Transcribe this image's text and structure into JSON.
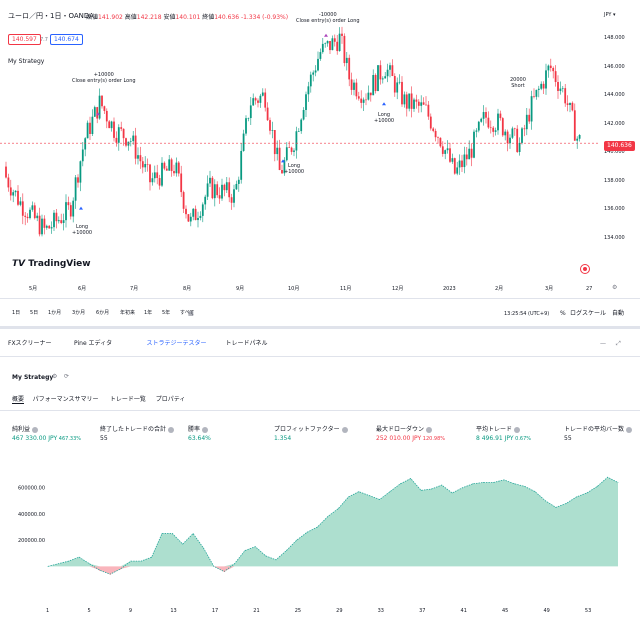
{
  "chart": {
    "symbol": "ユーロ／円・1日・OANDA",
    "ohlc": [
      {
        "label": "始値",
        "value": "141.902"
      },
      {
        "label": "高値",
        "value": "142.218"
      },
      {
        "label": "安値",
        "value": "140.101"
      },
      {
        "label": "終値",
        "value": "140.636",
        "change": "-1.334 (-0.93%)"
      }
    ],
    "sell_price": "140.597",
    "spread": "7.7",
    "buy_price": "140.674",
    "strategy_label": "My Strategy",
    "currency": "JPY",
    "current_price": "140.636",
    "price_axis": [
      "148.000",
      "146.000",
      "144.000",
      "142.000",
      "140.000",
      "138.000",
      "136.000",
      "134.000"
    ],
    "time_axis": [
      "5月",
      "6月",
      "7月",
      "8月",
      "9月",
      "10月",
      "11月",
      "12月",
      "2023",
      "2月",
      "3月",
      "27"
    ],
    "annotations": [
      {
        "text": "+10000\nClose entry(s) order Long"
      },
      {
        "text": "Long\n+10000"
      },
      {
        "text": "-10000\nClose entry(s) order Long"
      },
      {
        "text": "Long\n+10000"
      },
      {
        "text": "Long\n+10000"
      },
      {
        "text": "20000\nShort"
      }
    ],
    "logo": "TradingView",
    "timeframes": [
      "1日",
      "5日",
      "1か月",
      "3か月",
      "6か月",
      "年初来",
      "1年",
      "5年",
      "すべて"
    ],
    "clock": "13:25:54 (UTC+9)",
    "percent_label": "%",
    "log_label": "ログスケール",
    "auto_label": "自動"
  },
  "panel": {
    "tabs": [
      "FXスクリーナー",
      "Pine エディタ",
      "ストラテジーテスター",
      "トレードパネル"
    ],
    "active_tab": 2,
    "strategy_name": "My Strategy",
    "sub_tabs": [
      "概要",
      "パフォーマンスサマリー",
      "トレード一覧",
      "プロパティ"
    ],
    "active_sub_tab": 0,
    "stats": [
      {
        "label": "純利益",
        "value": "467 330.00 JPY",
        "sub": "467.33%",
        "color": "#089981"
      },
      {
        "label": "終了したトレードの合計",
        "value": "55",
        "sub": "",
        "color": "#131722"
      },
      {
        "label": "勝率",
        "value": "63.64%",
        "sub": "",
        "color": "#089981"
      },
      {
        "label": "プロフィットファクター",
        "value": "1.354",
        "sub": "",
        "color": "#089981"
      },
      {
        "label": "最大ドローダウン",
        "value": "252 010.00 JPY",
        "sub": "120.98%",
        "color": "#f23645"
      },
      {
        "label": "平均トレード",
        "value": "8 496.91 JPY",
        "sub": "0.67%",
        "color": "#089981"
      },
      {
        "label": "トレードの平均バー数",
        "value": "55",
        "sub": "",
        "color": "#131722"
      }
    ],
    "equity_y_axis": [
      "600000.00",
      "400000.00",
      "200000.00"
    ],
    "equity_x_axis": [
      "1",
      "5",
      "9",
      "13",
      "17",
      "21",
      "25",
      "29",
      "33",
      "37",
      "41",
      "45",
      "49",
      "53"
    ]
  },
  "chart_data": {
    "type": "area",
    "title": "",
    "xlabel": "",
    "ylabel": "",
    "x": [
      1,
      2,
      3,
      4,
      5,
      6,
      7,
      8,
      9,
      10,
      11,
      12,
      13,
      14,
      15,
      16,
      17,
      18,
      19,
      20,
      21,
      22,
      23,
      24,
      25,
      26,
      27,
      28,
      29,
      30,
      31,
      32,
      33,
      34,
      35,
      36,
      37,
      38,
      39,
      40,
      41,
      42,
      43,
      44,
      45,
      46,
      47,
      48,
      49,
      50,
      51,
      52,
      53,
      54,
      55,
      56
    ],
    "values": [
      0,
      20000,
      40000,
      70000,
      20000,
      -30000,
      -60000,
      -20000,
      40000,
      40000,
      70000,
      250000,
      250000,
      170000,
      250000,
      140000,
      0,
      -40000,
      20000,
      120000,
      150000,
      80000,
      50000,
      120000,
      200000,
      260000,
      300000,
      380000,
      440000,
      530000,
      570000,
      540000,
      510000,
      570000,
      630000,
      670000,
      580000,
      590000,
      620000,
      560000,
      600000,
      630000,
      640000,
      640000,
      660000,
      630000,
      610000,
      570000,
      500000,
      450000,
      480000,
      530000,
      560000,
      610000,
      680000,
      640000
    ],
    "ylim": [
      -150000,
      720000
    ],
    "fill_color": "#9fd9c7",
    "negative_color": "#f7a3ab",
    "line_color": "#26a69a",
    "grid": false
  }
}
